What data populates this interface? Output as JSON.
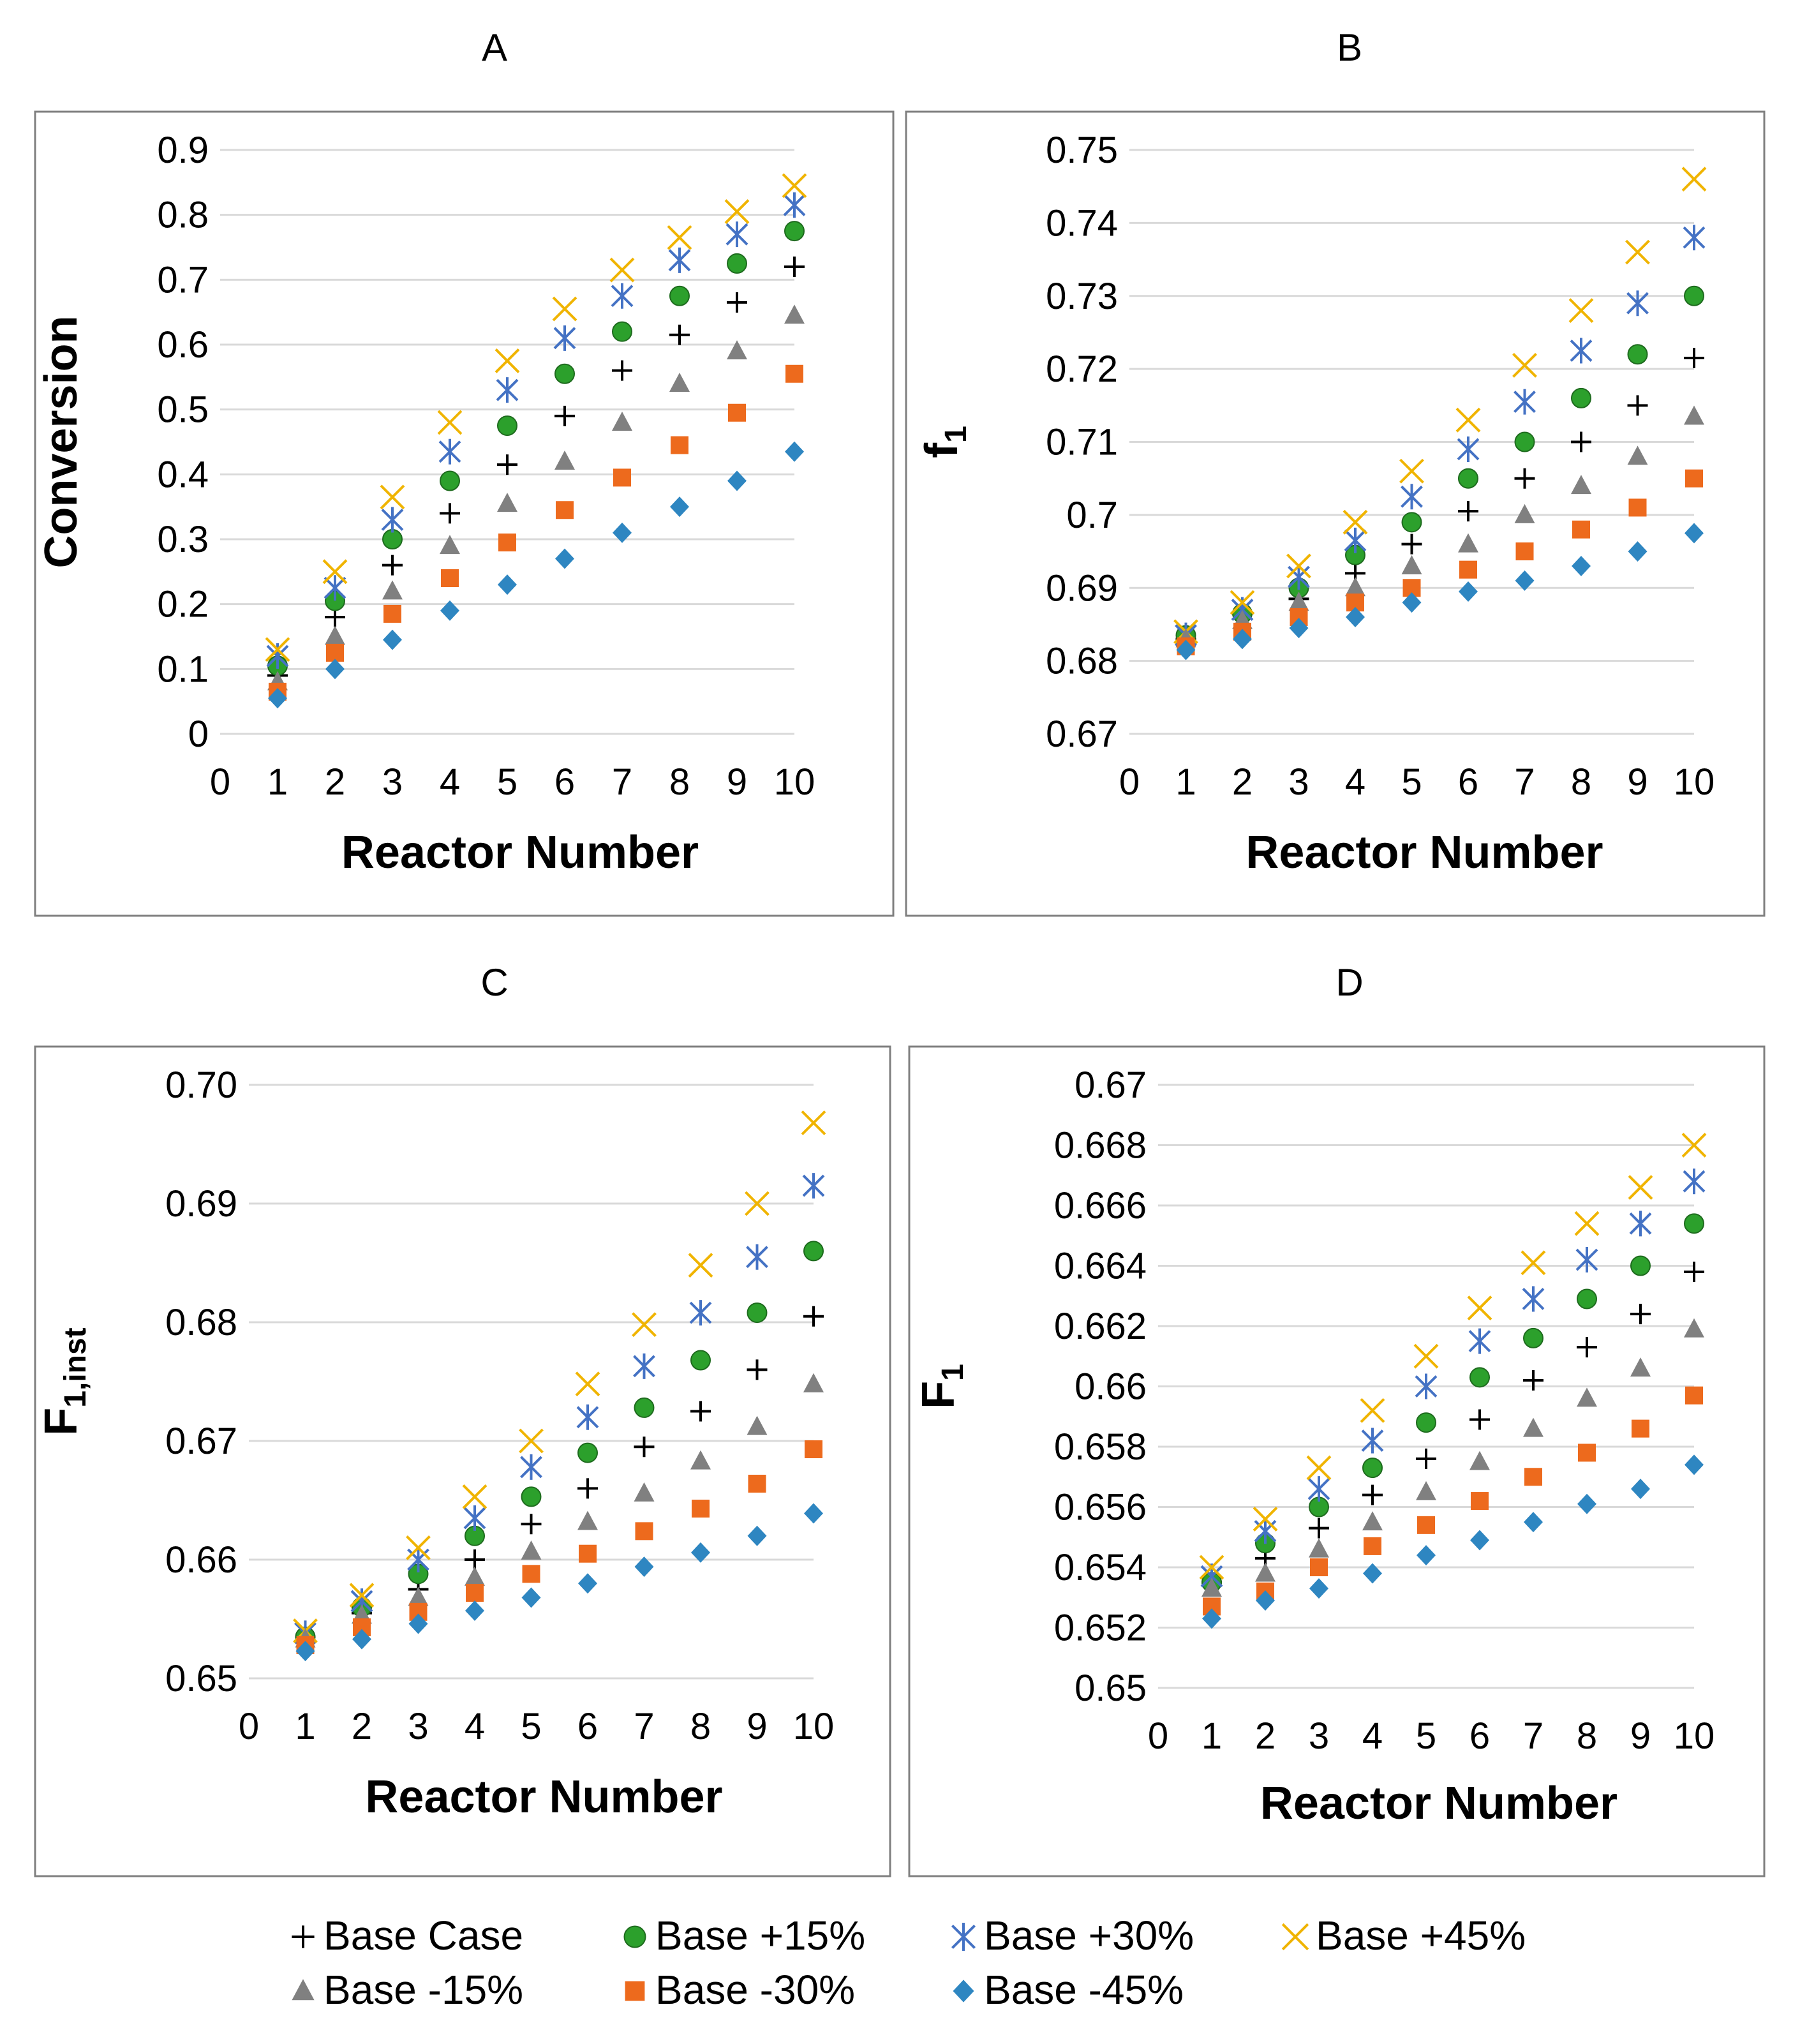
{
  "chart_data": [
    {
      "type": "scatter",
      "panel": "A",
      "ylabel": "Conversion",
      "xlabel": "Reactor Number",
      "xlim": [
        0,
        10
      ],
      "ylim": [
        0,
        0.9
      ],
      "yticks": [
        "0",
        "0.1",
        "0.2",
        "0.3",
        "0.4",
        "0.5",
        "0.6",
        "0.7",
        "0.8",
        "0.9"
      ],
      "yticks_values": [
        0,
        0.1,
        0.2,
        0.3,
        0.4,
        0.5,
        0.6,
        0.7,
        0.8,
        0.9
      ],
      "xticks": [
        "0",
        "1",
        "2",
        "3",
        "4",
        "5",
        "6",
        "7",
        "8",
        "9",
        "10"
      ],
      "x": [
        1,
        2,
        3,
        4,
        5,
        6,
        7,
        8,
        9,
        10
      ],
      "series": [
        {
          "name": "Base Case",
          "values": [
            0.09,
            0.18,
            0.26,
            0.34,
            0.415,
            0.49,
            0.56,
            0.615,
            0.665,
            0.72
          ]
        },
        {
          "name": "Base +15%",
          "values": [
            0.105,
            0.205,
            0.3,
            0.39,
            0.475,
            0.555,
            0.62,
            0.675,
            0.725,
            0.775
          ]
        },
        {
          "name": "Base +30%",
          "values": [
            0.12,
            0.225,
            0.33,
            0.435,
            0.53,
            0.61,
            0.675,
            0.73,
            0.77,
            0.815
          ]
        },
        {
          "name": "Base +45%",
          "values": [
            0.13,
            0.25,
            0.365,
            0.48,
            0.575,
            0.655,
            0.715,
            0.765,
            0.805,
            0.845
          ]
        },
        {
          "name": "Base -15%",
          "values": [
            0.08,
            0.15,
            0.22,
            0.29,
            0.355,
            0.42,
            0.48,
            0.54,
            0.59,
            0.645
          ]
        },
        {
          "name": "Base -30%",
          "values": [
            0.065,
            0.125,
            0.185,
            0.24,
            0.295,
            0.345,
            0.395,
            0.445,
            0.495,
            0.555
          ]
        },
        {
          "name": "Base -45%",
          "values": [
            0.055,
            0.1,
            0.145,
            0.19,
            0.23,
            0.27,
            0.31,
            0.35,
            0.39,
            0.435
          ]
        }
      ]
    },
    {
      "type": "scatter",
      "panel": "B",
      "ylabel": "f1",
      "xlabel": "Reactor Number",
      "xlim": [
        0,
        10
      ],
      "ylim": [
        0.67,
        0.75
      ],
      "yticks": [
        "0.67",
        "0.68",
        "0.69",
        "0.7",
        "0.71",
        "0.72",
        "0.73",
        "0.74",
        "0.75"
      ],
      "yticks_values": [
        0.67,
        0.68,
        0.69,
        0.7,
        0.71,
        0.72,
        0.73,
        0.74,
        0.75
      ],
      "xticks": [
        "0",
        "1",
        "2",
        "3",
        "4",
        "5",
        "6",
        "7",
        "8",
        "9",
        "10"
      ],
      "x": [
        1,
        2,
        3,
        4,
        5,
        6,
        7,
        8,
        9,
        10
      ],
      "series": [
        {
          "name": "Base Case",
          "values": [
            0.683,
            0.6865,
            0.6885,
            0.692,
            0.696,
            0.7005,
            0.705,
            0.71,
            0.715,
            0.7215
          ]
        },
        {
          "name": "Base +15%",
          "values": [
            0.6835,
            0.6865,
            0.69,
            0.6945,
            0.699,
            0.705,
            0.71,
            0.716,
            0.722,
            0.73
          ]
        },
        {
          "name": "Base +30%",
          "values": [
            0.6835,
            0.687,
            0.6915,
            0.6965,
            0.7025,
            0.709,
            0.7155,
            0.7225,
            0.729,
            0.738
          ]
        },
        {
          "name": "Base +45%",
          "values": [
            0.684,
            0.688,
            0.693,
            0.699,
            0.706,
            0.713,
            0.7205,
            0.728,
            0.736,
            0.746
          ]
        },
        {
          "name": "Base -15%",
          "values": [
            0.683,
            0.6855,
            0.688,
            0.69,
            0.693,
            0.696,
            0.7,
            0.704,
            0.708,
            0.7135
          ]
        },
        {
          "name": "Base -30%",
          "values": [
            0.682,
            0.684,
            0.686,
            0.688,
            0.69,
            0.6925,
            0.695,
            0.698,
            0.701,
            0.705
          ]
        },
        {
          "name": "Base -45%",
          "values": [
            0.6815,
            0.683,
            0.6845,
            0.686,
            0.688,
            0.6895,
            0.691,
            0.693,
            0.695,
            0.6975
          ]
        }
      ]
    },
    {
      "type": "scatter",
      "panel": "C",
      "ylabel": "F1,inst",
      "xlabel": "Reactor Number",
      "xlim": [
        0,
        10
      ],
      "ylim": [
        0.65,
        0.7
      ],
      "yticks": [
        "0.65",
        "0.66",
        "0.67",
        "0.68",
        "0.69",
        "0.70"
      ],
      "yticks_values": [
        0.65,
        0.66,
        0.67,
        0.68,
        0.69,
        0.7
      ],
      "xticks": [
        "0",
        "1",
        "2",
        "3",
        "4",
        "5",
        "6",
        "7",
        "8",
        "9",
        "10"
      ],
      "x": [
        1,
        2,
        3,
        4,
        5,
        6,
        7,
        8,
        9,
        10
      ],
      "series": [
        {
          "name": "Base Case",
          "values": [
            0.6535,
            0.6555,
            0.6575,
            0.66,
            0.663,
            0.666,
            0.6695,
            0.6725,
            0.676,
            0.6805
          ]
        },
        {
          "name": "Base +15%",
          "values": [
            0.6535,
            0.656,
            0.6588,
            0.662,
            0.6653,
            0.669,
            0.6728,
            0.6768,
            0.6808,
            0.686
          ]
        },
        {
          "name": "Base +30%",
          "values": [
            0.6538,
            0.6565,
            0.66,
            0.6635,
            0.6678,
            0.672,
            0.6763,
            0.6808,
            0.6855,
            0.6915
          ]
        },
        {
          "name": "Base +45%",
          "values": [
            0.654,
            0.657,
            0.661,
            0.6653,
            0.67,
            0.6748,
            0.6798,
            0.6848,
            0.69,
            0.6968
          ]
        },
        {
          "name": "Base -15%",
          "values": [
            0.6533,
            0.6553,
            0.6568,
            0.6585,
            0.6607,
            0.6632,
            0.6656,
            0.6683,
            0.6712,
            0.6748
          ]
        },
        {
          "name": "Base -30%",
          "values": [
            0.6528,
            0.6543,
            0.6556,
            0.6572,
            0.6588,
            0.6605,
            0.6624,
            0.6643,
            0.6664,
            0.6693
          ]
        },
        {
          "name": "Base -45%",
          "values": [
            0.6523,
            0.6533,
            0.6546,
            0.6557,
            0.6568,
            0.658,
            0.6594,
            0.6606,
            0.662,
            0.6639
          ]
        }
      ]
    },
    {
      "type": "scatter",
      "panel": "D",
      "ylabel": "F1",
      "xlabel": "Reactor Number",
      "xlim": [
        0,
        10
      ],
      "ylim": [
        0.65,
        0.67
      ],
      "yticks": [
        "0.65",
        "0.652",
        "0.654",
        "0.656",
        "0.658",
        "0.66",
        "0.662",
        "0.664",
        "0.666",
        "0.668",
        "0.67"
      ],
      "yticks_values": [
        0.65,
        0.652,
        0.654,
        0.656,
        0.658,
        0.66,
        0.662,
        0.664,
        0.666,
        0.668,
        0.67
      ],
      "xticks": [
        "0",
        "1",
        "2",
        "3",
        "4",
        "5",
        "6",
        "7",
        "8",
        "9",
        "10"
      ],
      "x": [
        1,
        2,
        3,
        4,
        5,
        6,
        7,
        8,
        9,
        10
      ],
      "series": [
        {
          "name": "Base Case",
          "values": [
            0.6535,
            0.6543,
            0.6553,
            0.6564,
            0.6576,
            0.6589,
            0.6602,
            0.6613,
            0.6624,
            0.6638
          ]
        },
        {
          "name": "Base +15%",
          "values": [
            0.6535,
            0.6548,
            0.656,
            0.6573,
            0.6588,
            0.6603,
            0.6616,
            0.6629,
            0.664,
            0.6654
          ]
        },
        {
          "name": "Base +30%",
          "values": [
            0.6537,
            0.6552,
            0.6566,
            0.6582,
            0.66,
            0.6615,
            0.6629,
            0.6642,
            0.6654,
            0.6668
          ]
        },
        {
          "name": "Base +45%",
          "values": [
            0.654,
            0.6556,
            0.6573,
            0.6592,
            0.661,
            0.6626,
            0.6641,
            0.6654,
            0.6666,
            0.668
          ]
        },
        {
          "name": "Base -15%",
          "values": [
            0.6533,
            0.6538,
            0.6546,
            0.6555,
            0.6565,
            0.6575,
            0.6586,
            0.6596,
            0.6606,
            0.6619
          ]
        },
        {
          "name": "Base -30%",
          "values": [
            0.6527,
            0.6532,
            0.654,
            0.6547,
            0.6554,
            0.6562,
            0.657,
            0.6578,
            0.6586,
            0.6597
          ]
        },
        {
          "name": "Base -45%",
          "values": [
            0.6523,
            0.6529,
            0.6533,
            0.6538,
            0.6544,
            0.6549,
            0.6555,
            0.6561,
            0.6566,
            0.6574
          ]
        }
      ]
    }
  ],
  "legend": [
    {
      "label": "Base Case",
      "marker": "plus",
      "color": "#000000"
    },
    {
      "label": "Base +15%",
      "marker": "circle",
      "color": "#2ca02c"
    },
    {
      "label": "Base +30%",
      "marker": "asterisk",
      "color": "#4472c4"
    },
    {
      "label": "Base +45%",
      "marker": "x",
      "color": "#f0b400"
    },
    {
      "label": "Base -15%",
      "marker": "triangle",
      "color": "#808080"
    },
    {
      "label": "Base -30%",
      "marker": "square",
      "color": "#ed6a1d"
    },
    {
      "label": "Base -45%",
      "marker": "diamond",
      "color": "#2e86c1"
    }
  ]
}
